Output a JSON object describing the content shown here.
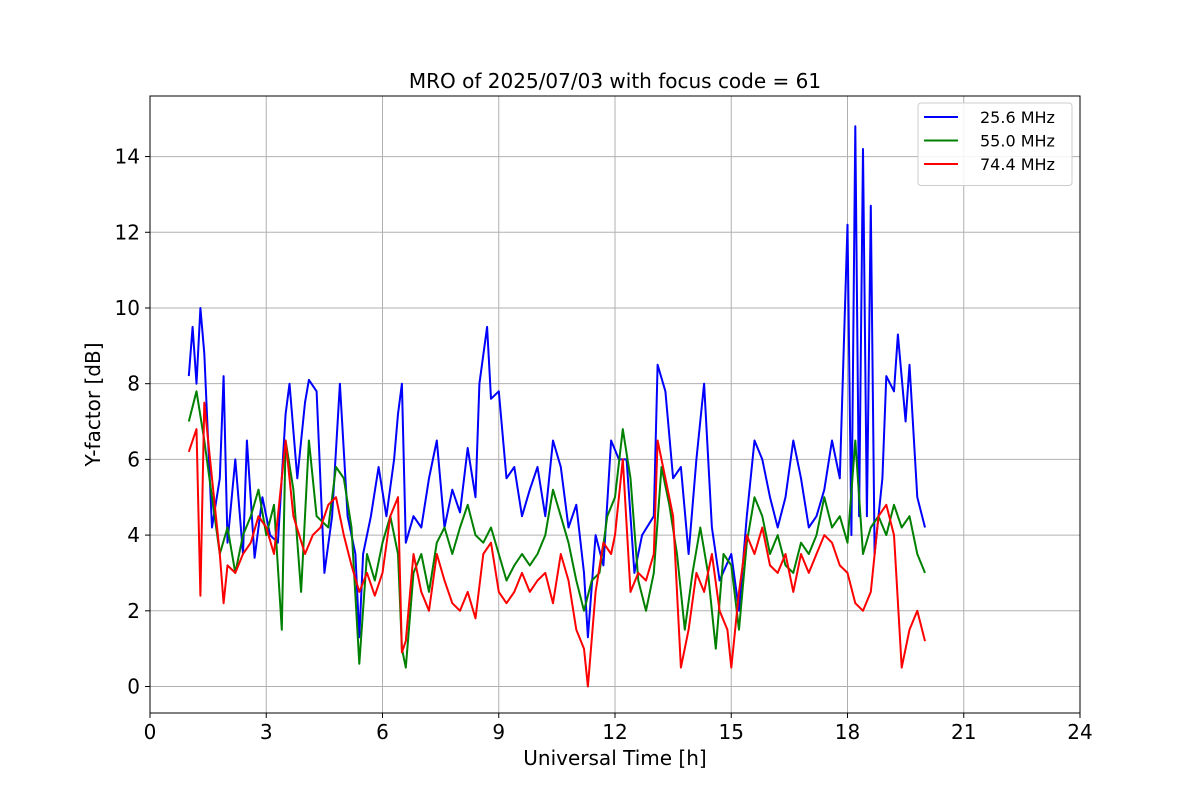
{
  "chart_data": {
    "type": "line",
    "title": "MRO of 2025/07/03 with focus code = 61",
    "xlabel": "Universal Time [h]",
    "ylabel": "Y-factor [dB]",
    "xlim": [
      0,
      24
    ],
    "ylim": [
      -0.7,
      15.6
    ],
    "xticks": [
      0,
      3,
      6,
      9,
      12,
      15,
      18,
      21,
      24
    ],
    "yticks": [
      0,
      2,
      4,
      6,
      8,
      10,
      12,
      14
    ],
    "grid": true,
    "legend_position": "top-right",
    "series": [
      {
        "name": "25.6 MHz",
        "color": "#0000ff",
        "points": [
          [
            1.0,
            8.2
          ],
          [
            1.1,
            9.5
          ],
          [
            1.2,
            8.0
          ],
          [
            1.3,
            10.0
          ],
          [
            1.4,
            8.8
          ],
          [
            1.5,
            6.5
          ],
          [
            1.6,
            4.2
          ],
          [
            1.8,
            5.5
          ],
          [
            1.9,
            8.2
          ],
          [
            2.0,
            3.8
          ],
          [
            2.2,
            6.0
          ],
          [
            2.4,
            3.5
          ],
          [
            2.5,
            6.5
          ],
          [
            2.7,
            3.4
          ],
          [
            2.9,
            5.0
          ],
          [
            3.1,
            4.0
          ],
          [
            3.3,
            3.8
          ],
          [
            3.5,
            7.2
          ],
          [
            3.6,
            8.0
          ],
          [
            3.8,
            5.5
          ],
          [
            4.0,
            7.5
          ],
          [
            4.1,
            8.1
          ],
          [
            4.3,
            7.8
          ],
          [
            4.5,
            3.0
          ],
          [
            4.7,
            4.5
          ],
          [
            4.9,
            8.0
          ],
          [
            5.1,
            4.5
          ],
          [
            5.3,
            3.5
          ],
          [
            5.4,
            1.3
          ],
          [
            5.5,
            3.5
          ],
          [
            5.7,
            4.5
          ],
          [
            5.9,
            5.8
          ],
          [
            6.1,
            4.5
          ],
          [
            6.3,
            6.0
          ],
          [
            6.4,
            7.2
          ],
          [
            6.5,
            8.0
          ],
          [
            6.6,
            3.8
          ],
          [
            6.8,
            4.5
          ],
          [
            7.0,
            4.2
          ],
          [
            7.2,
            5.5
          ],
          [
            7.4,
            6.5
          ],
          [
            7.6,
            4.2
          ],
          [
            7.8,
            5.2
          ],
          [
            8.0,
            4.6
          ],
          [
            8.2,
            6.3
          ],
          [
            8.4,
            5.0
          ],
          [
            8.5,
            8.0
          ],
          [
            8.7,
            9.5
          ],
          [
            8.8,
            7.6
          ],
          [
            9.0,
            7.8
          ],
          [
            9.2,
            5.5
          ],
          [
            9.4,
            5.8
          ],
          [
            9.6,
            4.5
          ],
          [
            9.8,
            5.2
          ],
          [
            10.0,
            5.8
          ],
          [
            10.2,
            4.5
          ],
          [
            10.4,
            6.5
          ],
          [
            10.6,
            5.8
          ],
          [
            10.8,
            4.2
          ],
          [
            11.0,
            4.8
          ],
          [
            11.2,
            3.0
          ],
          [
            11.3,
            1.3
          ],
          [
            11.5,
            4.0
          ],
          [
            11.7,
            3.2
          ],
          [
            11.9,
            6.5
          ],
          [
            12.1,
            6.0
          ],
          [
            12.3,
            6.0
          ],
          [
            12.5,
            3.0
          ],
          [
            12.7,
            4.0
          ],
          [
            13.0,
            4.5
          ],
          [
            13.1,
            8.5
          ],
          [
            13.3,
            7.8
          ],
          [
            13.5,
            5.5
          ],
          [
            13.7,
            5.8
          ],
          [
            13.9,
            3.5
          ],
          [
            14.1,
            6.0
          ],
          [
            14.3,
            8.0
          ],
          [
            14.5,
            4.2
          ],
          [
            14.7,
            2.8
          ],
          [
            15.0,
            3.5
          ],
          [
            15.2,
            2.0
          ],
          [
            15.4,
            4.5
          ],
          [
            15.6,
            6.5
          ],
          [
            15.8,
            6.0
          ],
          [
            16.0,
            5.0
          ],
          [
            16.2,
            4.2
          ],
          [
            16.4,
            5.0
          ],
          [
            16.6,
            6.5
          ],
          [
            16.8,
            5.5
          ],
          [
            17.0,
            4.2
          ],
          [
            17.2,
            4.5
          ],
          [
            17.4,
            5.2
          ],
          [
            17.6,
            6.5
          ],
          [
            17.8,
            5.5
          ],
          [
            18.0,
            12.2
          ],
          [
            18.1,
            4.0
          ],
          [
            18.2,
            14.8
          ],
          [
            18.3,
            4.5
          ],
          [
            18.4,
            14.2
          ],
          [
            18.5,
            4.5
          ],
          [
            18.6,
            12.7
          ],
          [
            18.7,
            3.5
          ],
          [
            18.9,
            5.5
          ],
          [
            19.0,
            8.2
          ],
          [
            19.2,
            7.8
          ],
          [
            19.3,
            9.3
          ],
          [
            19.5,
            7.0
          ],
          [
            19.6,
            8.5
          ],
          [
            19.8,
            5.0
          ],
          [
            20.0,
            4.2
          ]
        ]
      },
      {
        "name": "55.0 MHz",
        "color": "#008000",
        "points": [
          [
            1.0,
            7.0
          ],
          [
            1.2,
            7.8
          ],
          [
            1.4,
            6.5
          ],
          [
            1.6,
            5.0
          ],
          [
            1.8,
            3.5
          ],
          [
            2.0,
            4.2
          ],
          [
            2.2,
            3.0
          ],
          [
            2.4,
            4.0
          ],
          [
            2.6,
            4.5
          ],
          [
            2.8,
            5.2
          ],
          [
            3.0,
            4.0
          ],
          [
            3.2,
            4.8
          ],
          [
            3.4,
            1.5
          ],
          [
            3.5,
            6.5
          ],
          [
            3.7,
            5.2
          ],
          [
            3.9,
            2.5
          ],
          [
            4.1,
            6.5
          ],
          [
            4.3,
            4.5
          ],
          [
            4.6,
            4.2
          ],
          [
            4.8,
            5.8
          ],
          [
            5.0,
            5.5
          ],
          [
            5.2,
            4.2
          ],
          [
            5.4,
            0.6
          ],
          [
            5.6,
            3.5
          ],
          [
            5.8,
            2.8
          ],
          [
            6.0,
            3.8
          ],
          [
            6.2,
            4.5
          ],
          [
            6.4,
            3.5
          ],
          [
            6.5,
            1.0
          ],
          [
            6.6,
            0.5
          ],
          [
            6.8,
            3.0
          ],
          [
            7.0,
            3.5
          ],
          [
            7.2,
            2.5
          ],
          [
            7.4,
            3.8
          ],
          [
            7.6,
            4.2
          ],
          [
            7.8,
            3.5
          ],
          [
            8.0,
            4.2
          ],
          [
            8.2,
            4.8
          ],
          [
            8.4,
            4.0
          ],
          [
            8.6,
            3.8
          ],
          [
            8.8,
            4.2
          ],
          [
            9.0,
            3.5
          ],
          [
            9.2,
            2.8
          ],
          [
            9.4,
            3.2
          ],
          [
            9.6,
            3.5
          ],
          [
            9.8,
            3.2
          ],
          [
            10.0,
            3.5
          ],
          [
            10.2,
            4.0
          ],
          [
            10.4,
            5.2
          ],
          [
            10.6,
            4.5
          ],
          [
            10.8,
            3.8
          ],
          [
            11.0,
            2.8
          ],
          [
            11.2,
            2.0
          ],
          [
            11.4,
            2.8
          ],
          [
            11.6,
            3.0
          ],
          [
            11.8,
            4.5
          ],
          [
            12.0,
            5.0
          ],
          [
            12.2,
            6.8
          ],
          [
            12.4,
            5.5
          ],
          [
            12.6,
            2.8
          ],
          [
            12.8,
            2.0
          ],
          [
            13.0,
            3.0
          ],
          [
            13.2,
            5.8
          ],
          [
            13.4,
            4.8
          ],
          [
            13.6,
            3.5
          ],
          [
            13.8,
            1.5
          ],
          [
            14.0,
            3.0
          ],
          [
            14.2,
            4.2
          ],
          [
            14.4,
            3.0
          ],
          [
            14.6,
            1.0
          ],
          [
            14.8,
            3.5
          ],
          [
            15.0,
            3.2
          ],
          [
            15.2,
            1.5
          ],
          [
            15.4,
            3.8
          ],
          [
            15.6,
            5.0
          ],
          [
            15.8,
            4.5
          ],
          [
            16.0,
            3.5
          ],
          [
            16.2,
            4.0
          ],
          [
            16.4,
            3.2
          ],
          [
            16.6,
            3.0
          ],
          [
            16.8,
            3.8
          ],
          [
            17.0,
            3.5
          ],
          [
            17.2,
            4.0
          ],
          [
            17.4,
            5.0
          ],
          [
            17.6,
            4.2
          ],
          [
            17.8,
            4.5
          ],
          [
            18.0,
            3.8
          ],
          [
            18.2,
            6.5
          ],
          [
            18.4,
            3.5
          ],
          [
            18.6,
            4.2
          ],
          [
            18.8,
            4.5
          ],
          [
            19.0,
            4.0
          ],
          [
            19.2,
            4.8
          ],
          [
            19.4,
            4.2
          ],
          [
            19.6,
            4.5
          ],
          [
            19.8,
            3.5
          ],
          [
            20.0,
            3.0
          ]
        ]
      },
      {
        "name": "74.4 MHz",
        "color": "#ff0000",
        "points": [
          [
            1.0,
            6.2
          ],
          [
            1.2,
            6.8
          ],
          [
            1.3,
            2.4
          ],
          [
            1.4,
            7.5
          ],
          [
            1.6,
            5.5
          ],
          [
            1.8,
            3.5
          ],
          [
            1.9,
            2.2
          ],
          [
            2.0,
            3.2
          ],
          [
            2.2,
            3.0
          ],
          [
            2.4,
            3.5
          ],
          [
            2.6,
            3.8
          ],
          [
            2.8,
            4.5
          ],
          [
            3.0,
            4.2
          ],
          [
            3.2,
            3.5
          ],
          [
            3.4,
            5.5
          ],
          [
            3.5,
            6.5
          ],
          [
            3.7,
            4.5
          ],
          [
            4.0,
            3.5
          ],
          [
            4.2,
            4.0
          ],
          [
            4.4,
            4.2
          ],
          [
            4.6,
            4.8
          ],
          [
            4.8,
            5.0
          ],
          [
            5.0,
            4.0
          ],
          [
            5.2,
            3.2
          ],
          [
            5.4,
            2.5
          ],
          [
            5.6,
            3.0
          ],
          [
            5.8,
            2.4
          ],
          [
            6.0,
            3.0
          ],
          [
            6.2,
            4.5
          ],
          [
            6.4,
            5.0
          ],
          [
            6.5,
            0.9
          ],
          [
            6.6,
            1.2
          ],
          [
            6.8,
            3.5
          ],
          [
            7.0,
            2.5
          ],
          [
            7.2,
            2.0
          ],
          [
            7.4,
            3.5
          ],
          [
            7.6,
            2.8
          ],
          [
            7.8,
            2.2
          ],
          [
            8.0,
            2.0
          ],
          [
            8.2,
            2.5
          ],
          [
            8.4,
            1.8
          ],
          [
            8.6,
            3.5
          ],
          [
            8.8,
            3.8
          ],
          [
            9.0,
            2.5
          ],
          [
            9.2,
            2.2
          ],
          [
            9.4,
            2.5
          ],
          [
            9.6,
            3.0
          ],
          [
            9.8,
            2.5
          ],
          [
            10.0,
            2.8
          ],
          [
            10.2,
            3.0
          ],
          [
            10.4,
            2.2
          ],
          [
            10.6,
            3.5
          ],
          [
            10.8,
            2.8
          ],
          [
            11.0,
            1.5
          ],
          [
            11.2,
            1.0
          ],
          [
            11.3,
            0.0
          ],
          [
            11.5,
            2.5
          ],
          [
            11.7,
            3.8
          ],
          [
            11.9,
            3.5
          ],
          [
            12.0,
            4.0
          ],
          [
            12.2,
            6.0
          ],
          [
            12.4,
            2.5
          ],
          [
            12.6,
            3.0
          ],
          [
            12.8,
            2.8
          ],
          [
            13.0,
            3.5
          ],
          [
            13.1,
            6.5
          ],
          [
            13.3,
            5.5
          ],
          [
            13.5,
            4.5
          ],
          [
            13.7,
            0.5
          ],
          [
            13.9,
            1.5
          ],
          [
            14.1,
            3.0
          ],
          [
            14.3,
            2.5
          ],
          [
            14.5,
            3.5
          ],
          [
            14.7,
            2.0
          ],
          [
            14.9,
            1.5
          ],
          [
            15.0,
            0.5
          ],
          [
            15.2,
            2.5
          ],
          [
            15.4,
            4.0
          ],
          [
            15.6,
            3.5
          ],
          [
            15.8,
            4.2
          ],
          [
            16.0,
            3.2
          ],
          [
            16.2,
            3.0
          ],
          [
            16.4,
            3.5
          ],
          [
            16.6,
            2.5
          ],
          [
            16.8,
            3.5
          ],
          [
            17.0,
            3.0
          ],
          [
            17.2,
            3.5
          ],
          [
            17.4,
            4.0
          ],
          [
            17.6,
            3.8
          ],
          [
            17.8,
            3.2
          ],
          [
            18.0,
            3.0
          ],
          [
            18.2,
            2.2
          ],
          [
            18.4,
            2.0
          ],
          [
            18.6,
            2.5
          ],
          [
            18.8,
            4.5
          ],
          [
            19.0,
            4.8
          ],
          [
            19.2,
            4.0
          ],
          [
            19.4,
            0.5
          ],
          [
            19.6,
            1.5
          ],
          [
            19.8,
            2.0
          ],
          [
            20.0,
            1.2
          ]
        ]
      }
    ]
  }
}
